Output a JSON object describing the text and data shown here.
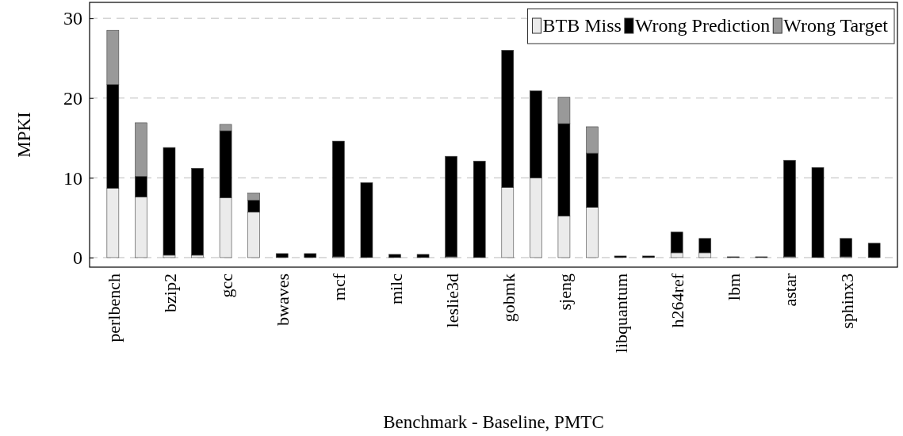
{
  "chart_data": {
    "type": "bar",
    "stacked": true,
    "xlabel": "Benchmark - Baseline, PMTC",
    "ylabel": "MPKI",
    "categories": [
      "perlbench",
      null,
      "bzip2",
      null,
      "gcc",
      null,
      "bwaves",
      null,
      "mcf",
      null,
      "milc",
      null,
      "leslie3d",
      null,
      "gobmk",
      null,
      "sjeng",
      null,
      "libquantum",
      null,
      "h264ref",
      null,
      "lbm",
      null,
      "astar",
      null,
      "sphinx3",
      null
    ],
    "series": [
      {
        "name": "BTB Miss",
        "color": "#ebebeb",
        "values": [
          8.7,
          7.6,
          0.3,
          0.3,
          7.5,
          5.7,
          0,
          0,
          0.1,
          0,
          0,
          0,
          0.1,
          0,
          8.8,
          10.0,
          5.2,
          6.3,
          0,
          0,
          0.6,
          0.6,
          0,
          0,
          0.1,
          0,
          0.1,
          0
        ]
      },
      {
        "name": "Wrong Prediction",
        "color": "#000000",
        "values": [
          13.0,
          2.6,
          13.5,
          10.9,
          8.4,
          1.5,
          0.5,
          0.5,
          14.5,
          9.4,
          0.4,
          0.4,
          12.6,
          12.1,
          17.2,
          10.9,
          11.6,
          6.8,
          0.2,
          0.2,
          2.6,
          1.8,
          0.1,
          0.1,
          12.1,
          11.3,
          2.3,
          1.8
        ]
      },
      {
        "name": "Wrong Target",
        "color": "#999999",
        "values": [
          6.8,
          6.7,
          0,
          0,
          0.8,
          0.9,
          0,
          0,
          0,
          0,
          0,
          0,
          0,
          0,
          0,
          0,
          3.3,
          3.3,
          0,
          0,
          0,
          0,
          0,
          0,
          0,
          0,
          0,
          0
        ]
      }
    ],
    "ylim": [
      -1.2,
      32
    ],
    "yticks": [
      0,
      10,
      20,
      30
    ],
    "grid": "y",
    "legend": "top right"
  }
}
